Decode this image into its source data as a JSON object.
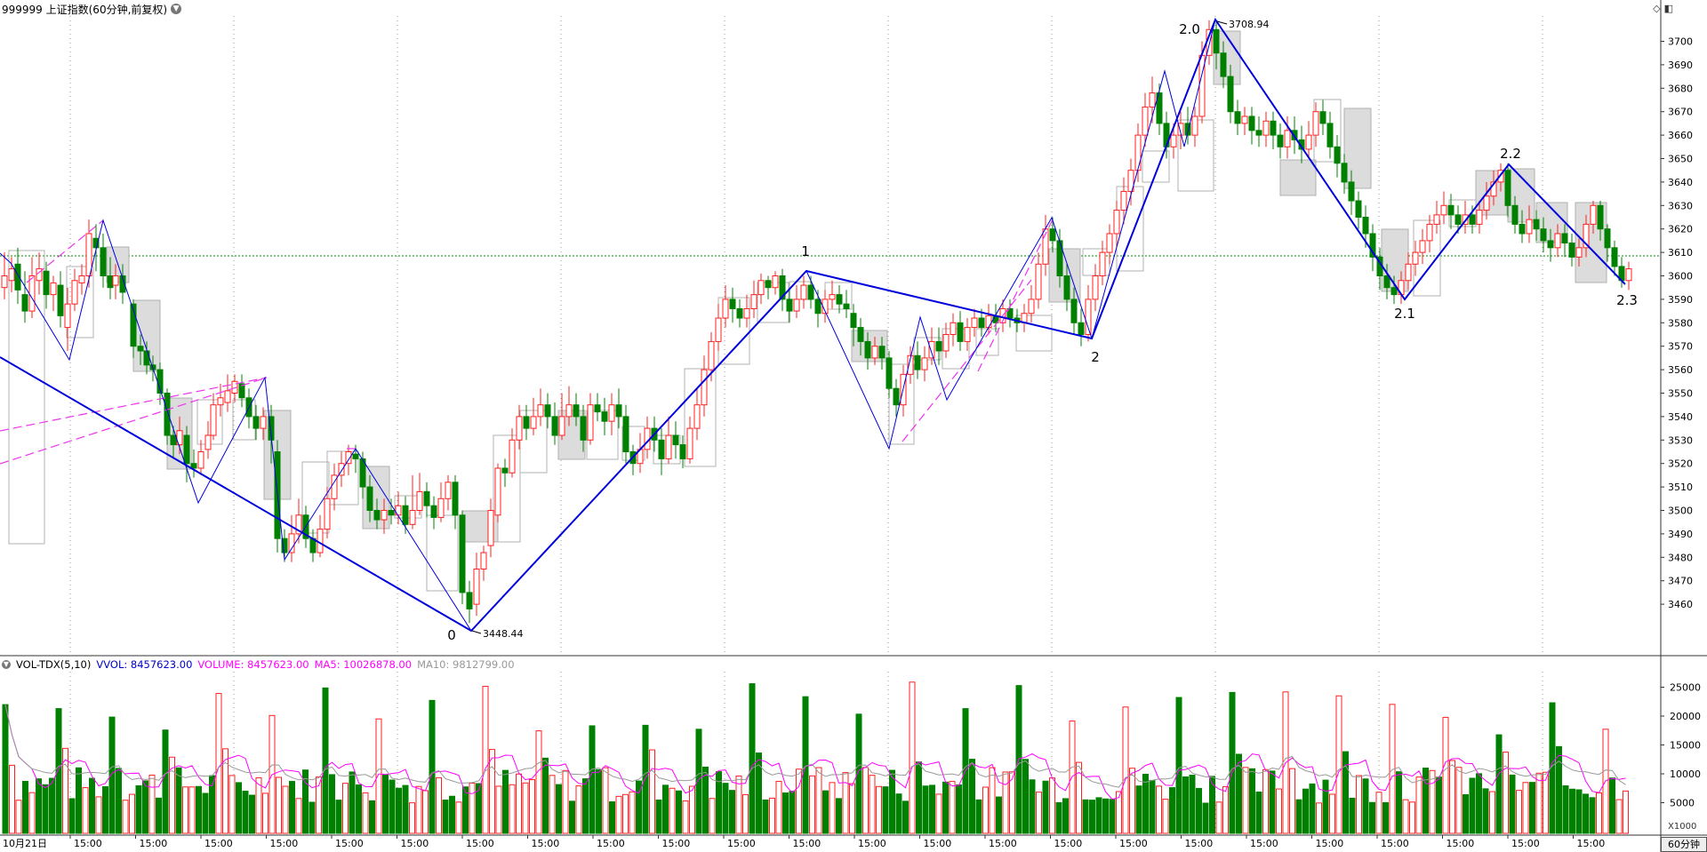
{
  "header": {
    "title": "999999 上证指数(60分钟,前复权)",
    "title_icon": "chevron-down-icon",
    "right_icons": [
      "diamond-icon",
      "panel-icon"
    ]
  },
  "price_axis": {
    "labels": [
      "3700",
      "3690",
      "3680",
      "3670",
      "3660",
      "3650",
      "3640",
      "3630",
      "3620",
      "3610",
      "3600",
      "3590",
      "3580",
      "3570",
      "3560",
      "3550",
      "3540",
      "3530",
      "3520",
      "3510",
      "3500",
      "3490",
      "3480",
      "3470",
      "3460"
    ]
  },
  "annotations": {
    "high_value": "3708.94",
    "low_value": "3448.44",
    "wave_labels": [
      "0",
      "1",
      "2",
      "2.0",
      "2.1",
      "2.2",
      "2.3"
    ]
  },
  "volume_panel": {
    "indicator": "VOL-TDX(5,10)",
    "vvol": "VVOL: 8457623.00",
    "volume": "VOLUME: 8457623.00",
    "ma5": "MA5: 10026878.00",
    "ma10": "MA10: 9812799.00",
    "axis_labels": [
      "25000",
      "20000",
      "15000",
      "10000",
      "5000"
    ],
    "unit": "X1000"
  },
  "time_axis": {
    "first_label": "10月21日",
    "tick_label": "15:00",
    "period_button": "60分钟"
  },
  "colors": {
    "up": "#ff2020",
    "down": "#008000",
    "wave_line": "#0000dd",
    "dashed_line": "#ee33ee",
    "grid": "#999999",
    "ref_line": "#008000",
    "ma5": "#ff00ff",
    "ma10": "#999999"
  }
}
